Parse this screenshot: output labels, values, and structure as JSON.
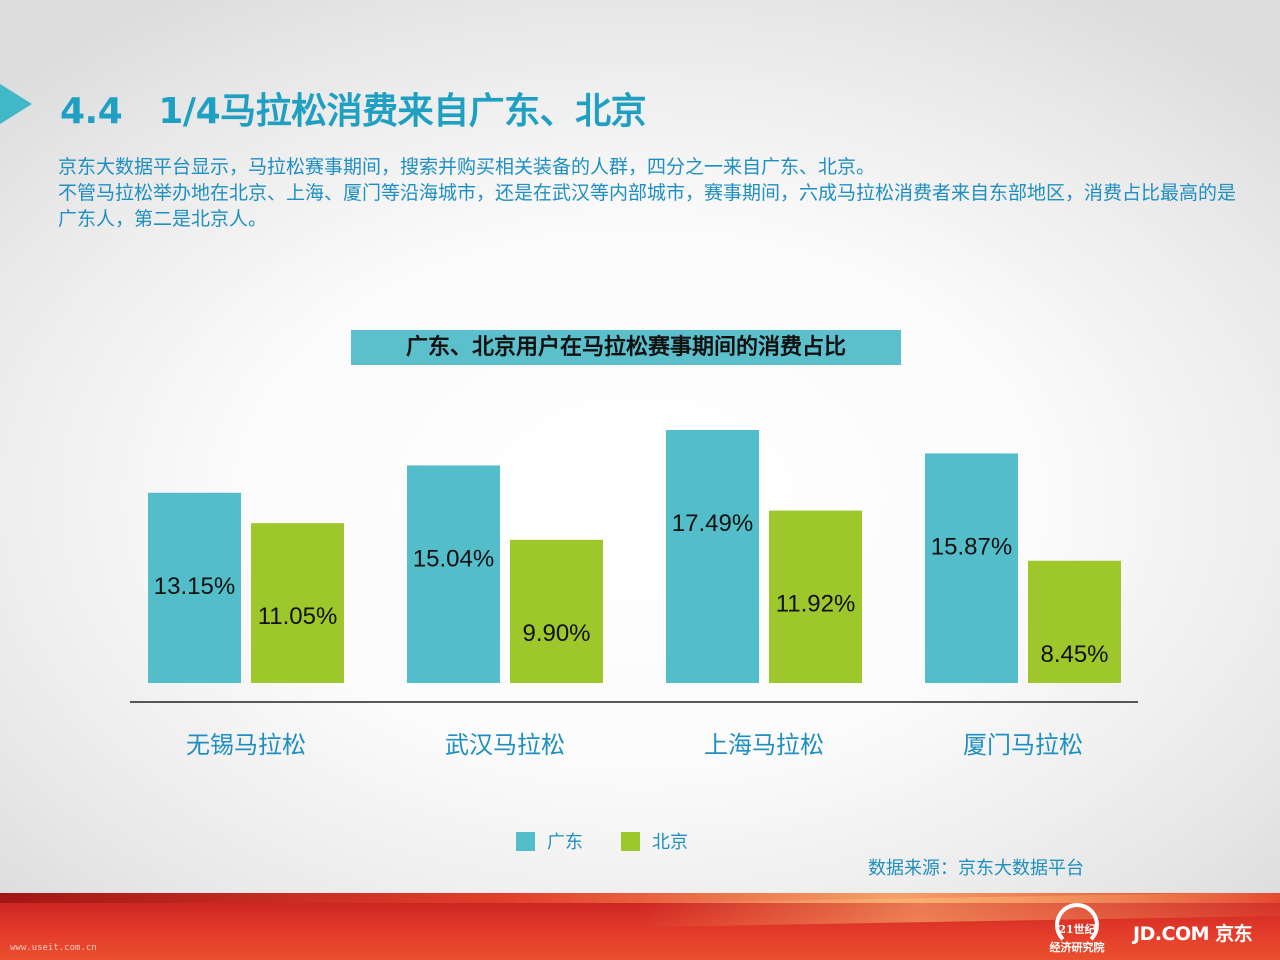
{
  "header": {
    "title": "4.4   1/4马拉松消费来自广东、北京",
    "description": [
      "京东大数据平台显示，马拉松赛事期间，搜索并购买相关装备的人群，四分之一来自广东、北京。",
      "不管马拉松举办地在北京、上海、厦门等沿海城市，还是在武汉等内部城市，赛事期间，六成马拉松消费者来自东部地区，消费占比最高的是广东人，第二是北京人。"
    ]
  },
  "chart_data": {
    "type": "bar",
    "title": "广东、北京用户在马拉松赛事期间的消费占比",
    "categories": [
      "无锡马拉松",
      "武汉马拉松",
      "上海马拉松",
      "厦门马拉松"
    ],
    "series": [
      {
        "name": "广东",
        "values": [
          13.15,
          15.04,
          17.49,
          15.87
        ],
        "labels": [
          "13.15%",
          "15.04%",
          "17.49%",
          "15.87%"
        ],
        "color": "#53bec9"
      },
      {
        "name": "北京",
        "values": [
          11.05,
          9.9,
          11.92,
          8.45
        ],
        "labels": [
          "11.05%",
          "9.90%",
          "11.92%",
          "8.45%"
        ],
        "color": "#9dc72a"
      }
    ],
    "legend_position": "bottom",
    "grid": false
  },
  "source": "数据来源：京东大数据平台",
  "footer": {
    "url": "www.useit.com.cn",
    "seal_line1": "21世纪",
    "seal_line2": "经济研究院",
    "brand": "JD.COM 京东"
  },
  "colors": {
    "accent": "#1f9fc1",
    "title_bar": "#5cc0cc",
    "footer_red": "#d9342a"
  }
}
